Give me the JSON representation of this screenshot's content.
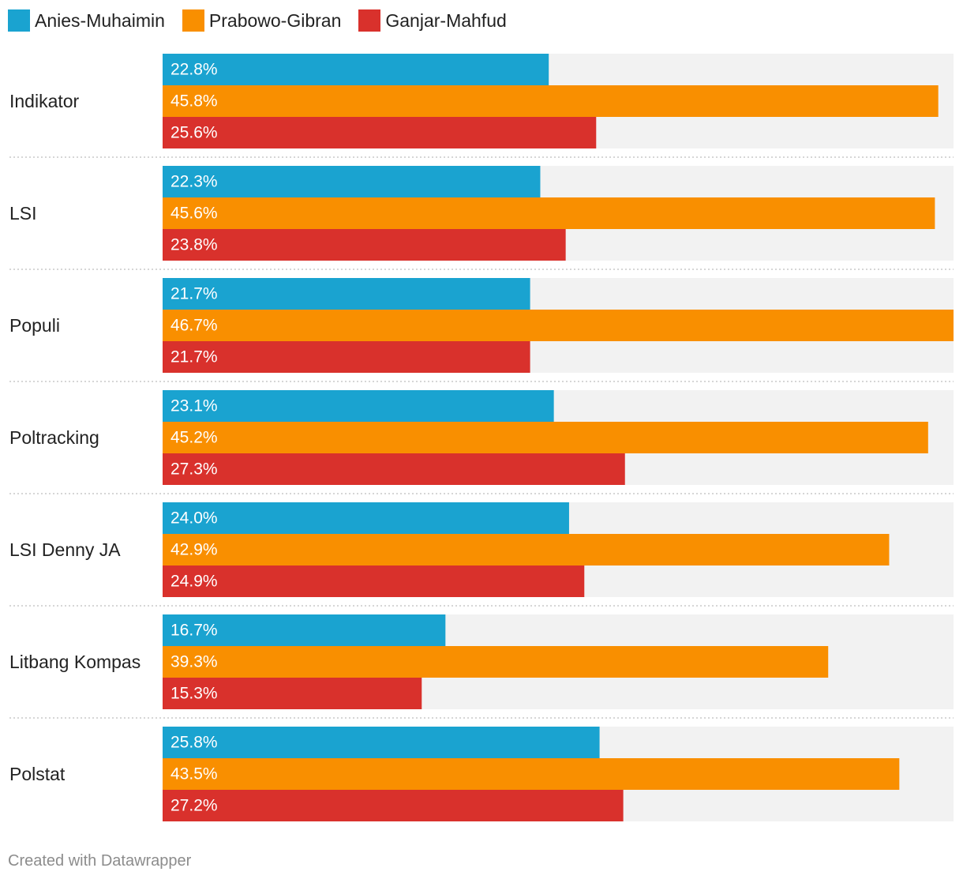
{
  "chart_data": {
    "type": "bar",
    "orientation": "horizontal-grouped",
    "categories": [
      "Indikator",
      "LSI",
      "Populi",
      "Poltracking",
      "LSI Denny JA",
      "Litbang Kompas",
      "Polstat"
    ],
    "series": [
      {
        "name": "Anies-Muhaimin",
        "color": "#1aa3d0",
        "values": [
          22.8,
          22.3,
          21.7,
          23.1,
          24.0,
          16.7,
          25.8
        ],
        "labels": [
          "22.8%",
          "22.3%",
          "21.7%",
          "23.1%",
          "24.0%",
          "16.7%",
          "25.8%"
        ]
      },
      {
        "name": "Prabowo-Gibran",
        "color": "#f98f00",
        "values": [
          45.8,
          45.6,
          46.7,
          45.2,
          42.9,
          39.3,
          43.5
        ],
        "labels": [
          "45.8%",
          "45.6%",
          "46.7%",
          "45.2%",
          "42.9%",
          "39.3%",
          "43.5%"
        ]
      },
      {
        "name": "Ganjar-Mahfud",
        "color": "#d9312c",
        "values": [
          25.6,
          23.8,
          21.7,
          27.3,
          24.9,
          15.3,
          27.2
        ],
        "labels": [
          "25.6%",
          "23.8%",
          "21.7%",
          "27.3%",
          "24.9%",
          "15.3%",
          "27.2%"
        ]
      }
    ],
    "xlim": [
      0,
      46.7
    ],
    "legend": "top-left",
    "title": "",
    "xlabel": "",
    "ylabel": ""
  },
  "legend": {
    "items": [
      {
        "label": "Anies-Muhaimin",
        "color": "#1aa3d0"
      },
      {
        "label": "Prabowo-Gibran",
        "color": "#f98f00"
      },
      {
        "label": "Ganjar-Mahfud",
        "color": "#d9312c"
      }
    ]
  },
  "footer": {
    "credit": "Created with Datawrapper"
  }
}
